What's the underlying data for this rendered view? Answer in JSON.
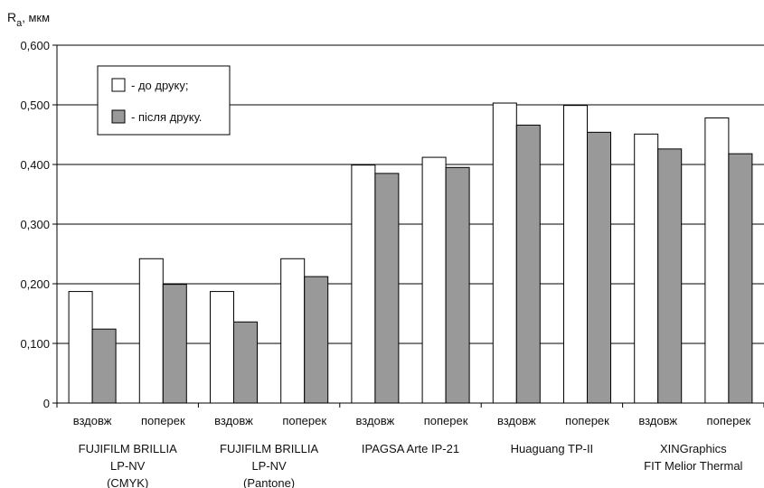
{
  "chart_data": {
    "type": "bar",
    "ylabel_main": "R",
    "ylabel_sub": "a",
    "ylabel_unit": ", мкм",
    "ylim": [
      0,
      0.6
    ],
    "yticks": [
      {
        "value": 0,
        "label": "0"
      },
      {
        "value": 0.1,
        "label": "0,100"
      },
      {
        "value": 0.2,
        "label": "0,200"
      },
      {
        "value": 0.3,
        "label": "0,300"
      },
      {
        "value": 0.4,
        "label": "0,400"
      },
      {
        "value": 0.5,
        "label": "0,500"
      },
      {
        "value": 0.6,
        "label": "0,600"
      }
    ],
    "grid": true,
    "legend_position": "top-left",
    "series": [
      {
        "name": "- до друку;",
        "color": "#ffffff",
        "values": [
          0.187,
          0.242,
          0.187,
          0.242,
          0.399,
          0.412,
          0.503,
          0.499,
          0.451,
          0.478
        ]
      },
      {
        "name": "- після друку.",
        "color": "#999999",
        "values": [
          0.124,
          0.199,
          0.136,
          0.212,
          0.385,
          0.395,
          0.466,
          0.454,
          0.426,
          0.418
        ]
      }
    ],
    "categories": [
      "вздовж",
      "поперек",
      "вздовж",
      "поперек",
      "вздовж",
      "поперек",
      "вздовж",
      "поперек",
      "вздовж",
      "поперек"
    ],
    "groups": [
      {
        "lines": [
          "FUJIFILM BRILLIA",
          "LP-NV",
          "(CMYK)"
        ]
      },
      {
        "lines": [
          "FUJIFILM BRILLIA",
          "LP-NV",
          "(Pantone)"
        ]
      },
      {
        "lines": [
          "IPAGSA Arte IP-21"
        ]
      },
      {
        "lines": [
          "Huaguang TP-II"
        ]
      },
      {
        "lines": [
          "XINGraphics",
          "FIT Melior Thermal"
        ]
      }
    ]
  }
}
